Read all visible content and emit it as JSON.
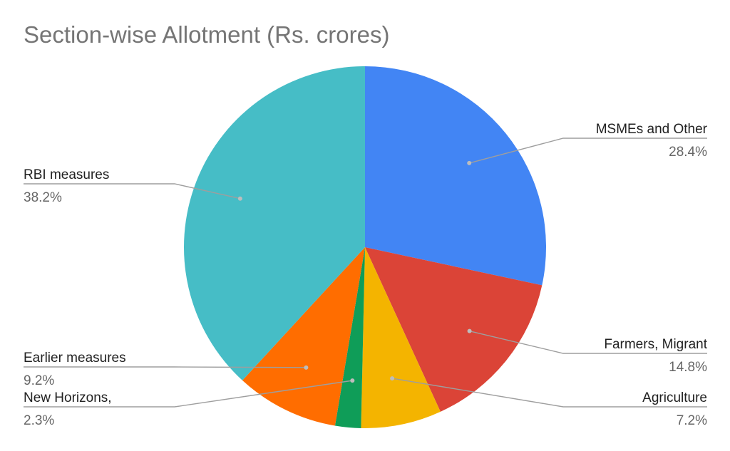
{
  "chart_data": {
    "type": "pie",
    "title": "Section-wise Allotment (Rs. crores)",
    "slices": [
      {
        "label": "MSMEs and Other",
        "value": 28.4,
        "percent_label": "28.4%",
        "color": "#4285f4"
      },
      {
        "label": "Farmers, Migrant",
        "value": 14.8,
        "percent_label": "14.8%",
        "color": "#db4437"
      },
      {
        "label": "Agriculture",
        "value": 7.2,
        "percent_label": "7.2%",
        "color": "#f4b400"
      },
      {
        "label": "New Horizons,",
        "value": 2.3,
        "percent_label": "2.3%",
        "color": "#0f9d58"
      },
      {
        "label": "Earlier measures",
        "value": 9.2,
        "percent_label": "9.2%",
        "color": "#ff6d00"
      },
      {
        "label": "RBI measures",
        "value": 38.2,
        "percent_label": "38.2%",
        "color": "#46bdc6"
      }
    ],
    "start_angle": "12 o'clock",
    "direction": "clockwise",
    "legend": "none"
  }
}
